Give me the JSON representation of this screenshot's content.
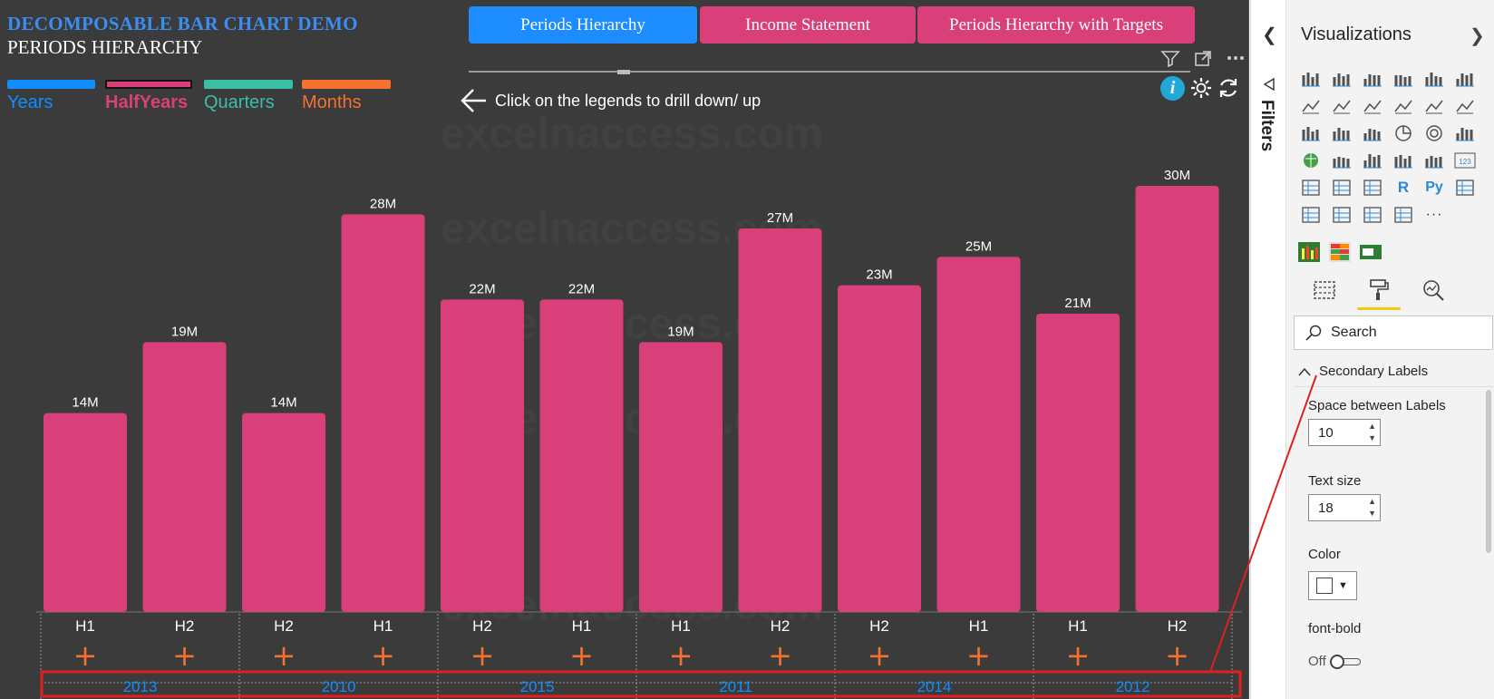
{
  "report": {
    "title": "DECOMPOSABLE BAR CHART DEMO",
    "subtitle": "PERIODS HIERARCHY",
    "hint": "Click on the legends to drill down/ up",
    "watermark": "excelnaccess.com"
  },
  "legend": [
    {
      "label": "Years",
      "color": "#118dff",
      "active": false
    },
    {
      "label": "HalfYears",
      "color": "#d9407a",
      "active": true
    },
    {
      "label": "Quarters",
      "color": "#3bbfa4",
      "active": false
    },
    {
      "label": "Months",
      "color": "#f5712f",
      "active": false
    }
  ],
  "nav_buttons": [
    {
      "label": "Periods Hierarchy",
      "color": "#1c8cff"
    },
    {
      "label": "Income Statement",
      "color": "#d9407a"
    },
    {
      "label": "Periods Hierarchy with Targets",
      "color": "#d9407a"
    }
  ],
  "chart_data": {
    "type": "bar",
    "bar_color": "#d9407a",
    "categories": [
      "H1",
      "H2",
      "H2",
      "H1",
      "H2",
      "H1",
      "H1",
      "H2",
      "H2",
      "H1",
      "H1",
      "H2"
    ],
    "values": [
      14,
      19,
      14,
      28,
      22,
      22,
      19,
      27,
      23,
      25,
      21,
      30
    ],
    "data_labels": [
      "14M",
      "19M",
      "14M",
      "28M",
      "22M",
      "22M",
      "19M",
      "27M",
      "23M",
      "25M",
      "21M",
      "30M"
    ],
    "unit": "M",
    "ylim": [
      0,
      30
    ],
    "groups": [
      "2013",
      "2010",
      "2015",
      "2011",
      "2014",
      "2012"
    ],
    "group_color": "#118dff",
    "expand_symbol": "+",
    "expand_color": "#f5712f"
  },
  "filters": {
    "label": "Filters",
    "collapse_icon": "chevron-left"
  },
  "pane": {
    "title": "Visualizations",
    "search_placeholder": "Search",
    "section": "Secondary Labels",
    "space_label": "Space between Labels",
    "space_value": "10",
    "text_size_label": "Text size",
    "text_size_value": "18",
    "color_label": "Color",
    "color_value": "#ffffff",
    "font_bold_label": "font-bold",
    "font_bold_value": "Off",
    "text_icons": {
      "r": "R",
      "py": "Py",
      "more": "···",
      "card": "123"
    }
  },
  "annotation_color": "#e02020"
}
